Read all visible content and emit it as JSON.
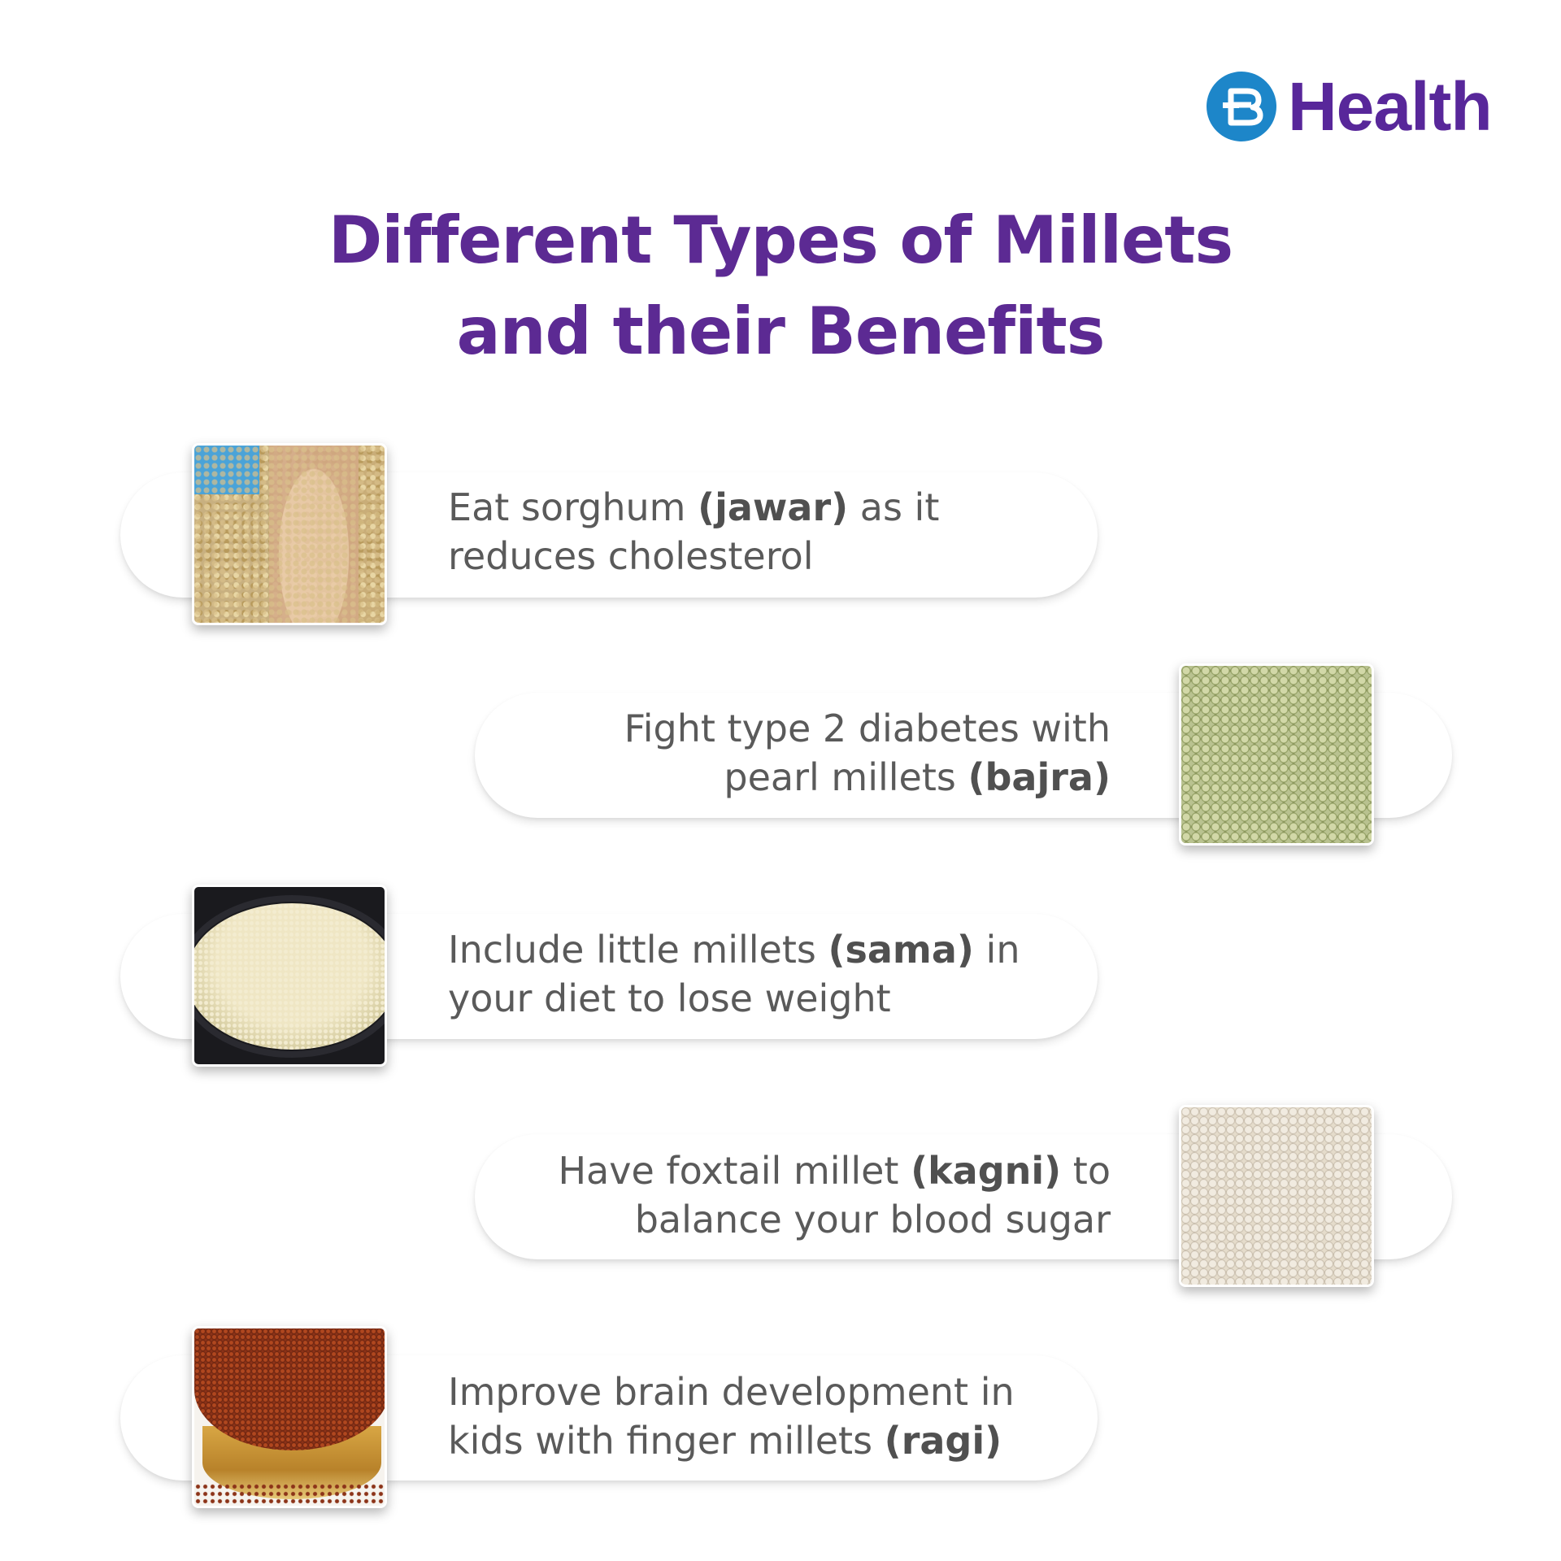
{
  "brand": {
    "name": "Health",
    "logo_letter": "B",
    "brand_color": "#58279a",
    "mark_color": "#1d86c9"
  },
  "title": {
    "line1": "Different Types of Millets",
    "line2": "and their Benefits",
    "color": "#5c2a93"
  },
  "benefits": [
    {
      "side": "left",
      "image": "sorghum-grains-in-hand",
      "line1_pre": "Eat sorghum ",
      "line1_bold": "(jawar)",
      "line1_post": " as it",
      "line2_pre": "reduces cholesterol",
      "line2_bold": "",
      "line2_post": ""
    },
    {
      "side": "right",
      "image": "pearl-millet-grains",
      "line1_pre": "Fight type 2 diabetes with",
      "line1_bold": "",
      "line1_post": "",
      "line2_pre": "pearl millets ",
      "line2_bold": "(bajra)",
      "line2_post": ""
    },
    {
      "side": "left",
      "image": "little-millet-in-bowl",
      "line1_pre": "Include little millets ",
      "line1_bold": "(sama)",
      "line1_post": " in",
      "line2_pre": "your diet to lose weight",
      "line2_bold": "",
      "line2_post": ""
    },
    {
      "side": "right",
      "image": "foxtail-millet-grains",
      "line1_pre": "Have foxtail millet ",
      "line1_bold": "(kagni)",
      "line1_post": " to",
      "line2_pre": "balance your blood sugar",
      "line2_bold": "",
      "line2_post": ""
    },
    {
      "side": "left",
      "image": "finger-millet-in-brass-bowl",
      "line1_pre": "Improve brain development in",
      "line1_bold": "",
      "line1_post": "",
      "line2_pre": "kids with finger millets ",
      "line2_bold": "(ragi)",
      "line2_post": ""
    }
  ]
}
